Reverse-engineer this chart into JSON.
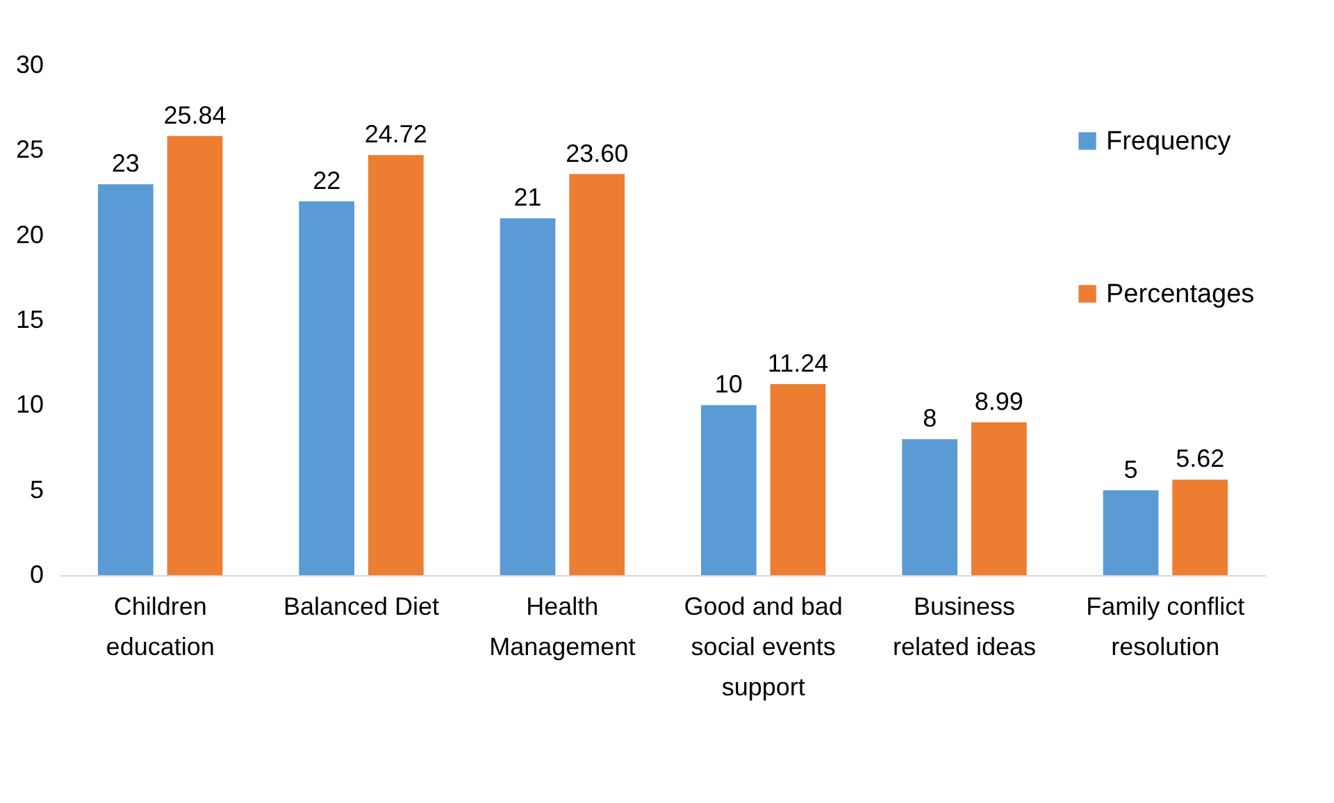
{
  "chart_data": {
    "type": "bar",
    "categories": [
      "Children\neducation",
      "Balanced Diet",
      "Health\nManagement",
      "Good and bad\nsocial events\nsupport",
      "Business\nrelated ideas",
      "Family conflict\nresolution"
    ],
    "series": [
      {
        "name": "Frequency",
        "color": "#5b9bd5",
        "values": [
          23,
          22,
          21,
          10,
          8,
          5
        ],
        "value_labels": [
          "23",
          "22",
          "21",
          "10",
          "8",
          "5"
        ]
      },
      {
        "name": "Percentages",
        "color": "#ed7d31",
        "values": [
          25.84,
          24.72,
          23.6,
          11.24,
          8.99,
          5.62
        ],
        "value_labels": [
          "25.84",
          "24.72",
          "23.60",
          "11.24",
          "8.99",
          "5.62"
        ]
      }
    ],
    "ylim": [
      0,
      30
    ],
    "yticks": [
      0,
      5,
      10,
      15,
      20,
      25,
      30
    ],
    "grid": false,
    "legend": "top right"
  }
}
